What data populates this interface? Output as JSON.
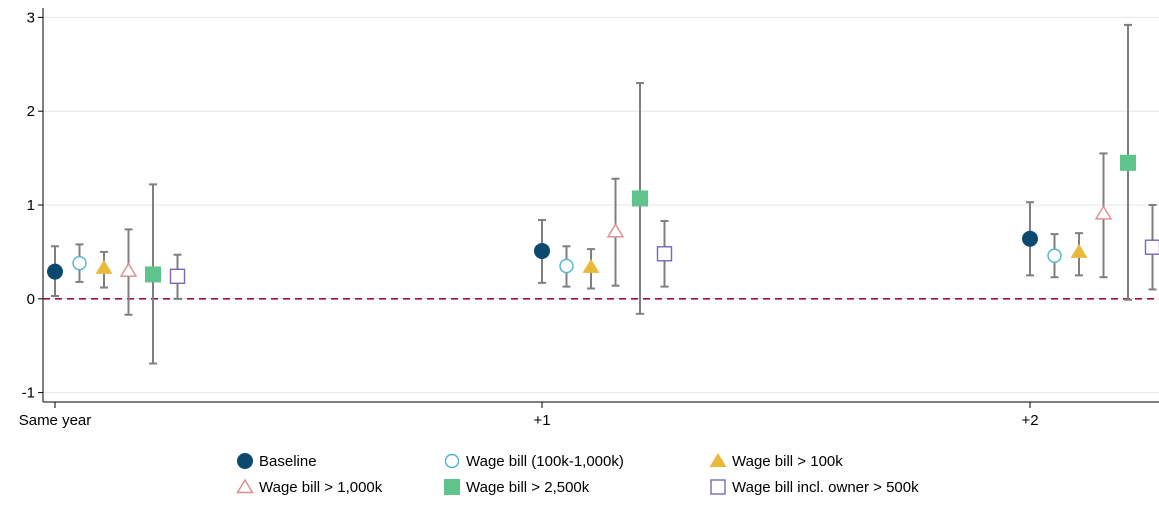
{
  "chart_data": {
    "type": "scatter",
    "title": "",
    "xlabel": "",
    "ylabel": "",
    "categories": [
      "Same year",
      "+1",
      "+2"
    ],
    "ylim": [
      -1.1,
      3.1
    ],
    "yticks": [
      -1,
      0,
      1,
      2,
      3
    ],
    "grid": true,
    "reference_line": 0,
    "reference_line_color": "#a0113a",
    "legend_position": "bottom",
    "series": [
      {
        "name": "Baseline",
        "marker": "circle-filled",
        "color": "#0b4a6e",
        "values": [
          0.29,
          0.51,
          0.64
        ],
        "ci_low": [
          0.03,
          0.17,
          0.25
        ],
        "ci_high": [
          0.56,
          0.84,
          1.03
        ]
      },
      {
        "name": "Wage bill (100k-1,000k)",
        "marker": "circle-open",
        "color": "#4fb3cf",
        "values": [
          0.38,
          0.35,
          0.46
        ],
        "ci_low": [
          0.18,
          0.13,
          0.23
        ],
        "ci_high": [
          0.58,
          0.56,
          0.69
        ]
      },
      {
        "name": "Wage bill > 100k",
        "marker": "triangle-filled",
        "color": "#e8b93a",
        "values": [
          0.33,
          0.34,
          0.5
        ],
        "ci_low": [
          0.12,
          0.11,
          0.25
        ],
        "ci_high": [
          0.5,
          0.53,
          0.7
        ]
      },
      {
        "name": "Wage bill > 1,000k",
        "marker": "triangle-open",
        "color": "#d98c8c",
        "values": [
          0.3,
          0.72,
          0.91
        ],
        "ci_low": [
          -0.17,
          0.14,
          0.23
        ],
        "ci_high": [
          0.74,
          1.28,
          1.55
        ]
      },
      {
        "name": "Wage bill > 2,500k",
        "marker": "square-filled",
        "color": "#5ec48c",
        "values": [
          0.26,
          1.07,
          1.45
        ],
        "ci_low": [
          -0.69,
          -0.16,
          -0.01
        ],
        "ci_high": [
          1.22,
          2.3,
          2.92
        ]
      },
      {
        "name": "Wage bill incl. owner > 500k",
        "marker": "square-open",
        "color": "#7a66b8",
        "values": [
          0.24,
          0.48,
          0.55
        ],
        "ci_low": [
          0.0,
          0.13,
          0.1
        ],
        "ci_high": [
          0.47,
          0.83,
          1.0
        ]
      }
    ]
  }
}
